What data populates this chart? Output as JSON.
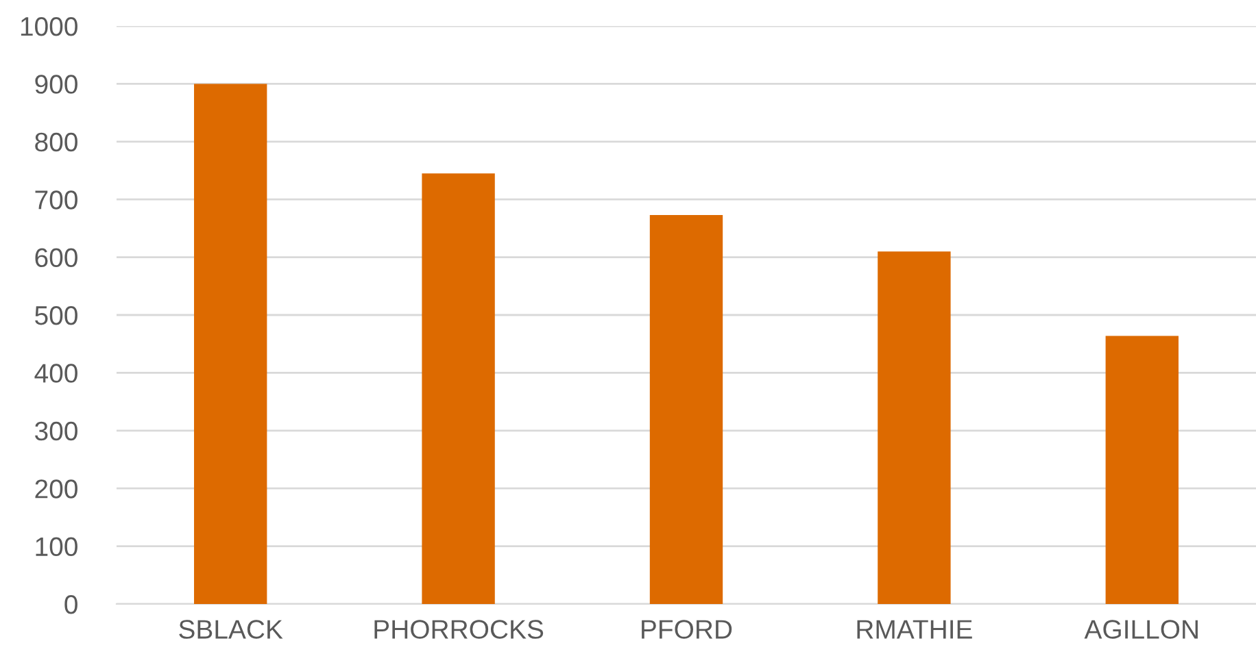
{
  "chart_data": {
    "type": "bar",
    "categories": [
      "SBLACK",
      "PHORROCKS",
      "PFORD",
      "RMATHIE",
      "AGILLON"
    ],
    "values": [
      900,
      745,
      673,
      610,
      464
    ],
    "color": "#dd6a00",
    "ylim": [
      0,
      1000
    ],
    "yticks": [
      0,
      100,
      200,
      300,
      400,
      500,
      600,
      700,
      800,
      900,
      1000
    ],
    "grid": "y",
    "legend": false
  }
}
